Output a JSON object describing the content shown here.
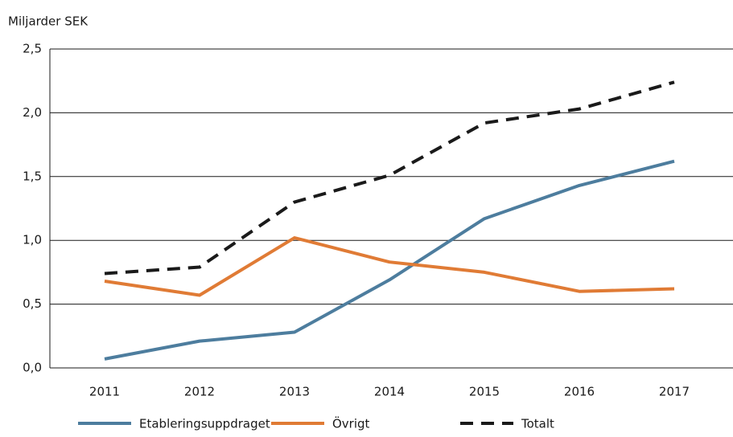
{
  "chart_data": {
    "type": "line",
    "y_label": "Miljarder SEK",
    "categories": [
      "2011",
      "2012",
      "2013",
      "2014",
      "2015",
      "2016",
      "2017"
    ],
    "series": [
      {
        "name": "Etableringsuppdraget",
        "color": "#4d7d9e",
        "dash": false,
        "values": [
          0.07,
          0.21,
          0.28,
          0.69,
          1.17,
          1.43,
          1.62
        ]
      },
      {
        "name": "Övrigt",
        "color": "#e07b35",
        "dash": false,
        "values": [
          0.68,
          0.57,
          1.02,
          0.83,
          0.75,
          0.6,
          0.62
        ]
      },
      {
        "name": "Totalt",
        "color": "#1a1a1a",
        "dash": true,
        "values": [
          0.74,
          0.79,
          1.3,
          1.51,
          1.92,
          2.03,
          2.24
        ]
      }
    ],
    "ylim": [
      0,
      2.5
    ],
    "yticks": [
      {
        "value": 0,
        "label": "0,0"
      },
      {
        "value": 0.5,
        "label": "0,5"
      },
      {
        "value": 1,
        "label": "1,0"
      },
      {
        "value": 1.5,
        "label": "1,5"
      },
      {
        "value": 2,
        "label": "2,0"
      },
      {
        "value": 2.5,
        "label": "2,5"
      }
    ],
    "grid": true,
    "legend": "bottom"
  }
}
